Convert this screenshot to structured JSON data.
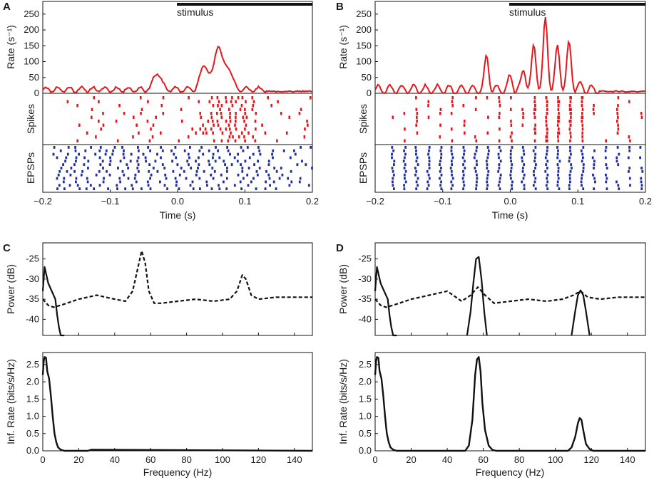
{
  "figure": {
    "colors": {
      "rate": "#e8161b",
      "spikes": "#e8161b",
      "epsps": "#1f2f9e",
      "ink": "#111111"
    }
  },
  "chart_data": [
    {
      "panel": "A",
      "type": "raster",
      "stimulus_label": "stimulus",
      "stimulus_window_s": [
        0.0,
        0.2
      ],
      "rate": {
        "ylabel": "Rate (s⁻¹)",
        "ylim": [
          0,
          290
        ],
        "yticks": [
          "0",
          "50",
          "100",
          "150",
          "200",
          "250"
        ],
        "series": {
          "name": "rate",
          "peaks": [
            [
              -0.03,
              65
            ],
            [
              0.06,
              150
            ],
            [
              0.04,
              95
            ],
            [
              0.075,
              85
            ]
          ],
          "baseline": 12
        }
      },
      "spikes_label": "Spikes",
      "epsps_label": "EPSPs",
      "xlabel": "Time (s)",
      "xlim": [
        -0.2,
        0.2
      ],
      "xticks": [
        "−0.2",
        "−0.1",
        "0.0",
        "0.1",
        "0.2"
      ]
    },
    {
      "panel": "B",
      "type": "raster",
      "stimulus_label": "stimulus",
      "stimulus_window_s": [
        0.0,
        0.2
      ],
      "rate": {
        "ylabel": "Rate (s⁻¹)",
        "ylim": [
          0,
          290
        ],
        "yticks": [
          "0",
          "50",
          "100",
          "150",
          "200",
          "250"
        ],
        "series": {
          "name": "rate",
          "peaks": [
            [
              -0.035,
              115
            ],
            [
              0.0,
              50
            ],
            [
              0.02,
              75
            ],
            [
              0.035,
              145
            ],
            [
              0.052,
              230
            ],
            [
              0.07,
              145
            ],
            [
              0.087,
              155
            ],
            [
              0.105,
              25
            ]
          ],
          "baseline": 12
        }
      },
      "spikes_label": "Spikes",
      "epsps_label": "EPSPs",
      "xlabel": "Time (s)",
      "xlim": [
        -0.2,
        0.2
      ],
      "xticks": [
        "−0.2",
        "−0.1",
        "0.0",
        "0.1",
        "0.2"
      ]
    },
    {
      "panel": "C",
      "type": "line",
      "power": {
        "ylabel": "Power (dB)",
        "ylim": [
          -44,
          -21
        ],
        "yticks": [
          "-25",
          "-30",
          "-35",
          "-40"
        ],
        "series": [
          {
            "name": "solid",
            "style": "solid",
            "x": [
              0,
              1,
              3,
              5,
              7,
              8,
              9,
              10,
              12
            ],
            "y": [
              -33,
              -27,
              -31,
              -33,
              -35,
              -39,
              -42,
              -44,
              -44
            ]
          },
          {
            "name": "dashed",
            "style": "dashed",
            "x": [
              0,
              3,
              6,
              10,
              20,
              30,
              40,
              46,
              50,
              53,
              55,
              57,
              59,
              62,
              66,
              75,
              85,
              95,
              104,
              108,
              111,
              113,
              116,
              120,
              130,
              140,
              150
            ],
            "y": [
              -35,
              -36.5,
              -37,
              -36.5,
              -35,
              -34,
              -35,
              -35.5,
              -33,
              -27,
              -23,
              -26,
              -33,
              -36,
              -36,
              -35.5,
              -35,
              -35.5,
              -35,
              -33,
              -29,
              -30,
              -34,
              -35,
              -34.5,
              -34.5,
              -34.5
            ]
          }
        ]
      },
      "info": {
        "ylabel": "Inf. Rate (bits/s/Hz)",
        "ylim": [
          0,
          2.85
        ],
        "yticks": [
          "0.0",
          "0.5",
          "1.0",
          "1.5",
          "2.0",
          "2.5"
        ],
        "series": [
          {
            "name": "info",
            "style": "solid",
            "x": [
              0,
              0.5,
              1,
              1.8,
              2.5,
              3.5,
              4.5,
              5.5,
              6.5,
              7.5,
              8.5,
              10,
              12,
              25,
              27,
              150
            ],
            "y": [
              2.2,
              2.6,
              2.72,
              2.7,
              2.3,
              2.1,
              1.6,
              1.0,
              0.5,
              0.25,
              0.1,
              0.03,
              0,
              0,
              0.03,
              0
            ]
          }
        ]
      },
      "xlabel": "Frequency (Hz)",
      "xlim": [
        0,
        150
      ],
      "xticks": [
        "0",
        "20",
        "40",
        "60",
        "80",
        "100",
        "120",
        "140"
      ]
    },
    {
      "panel": "D",
      "type": "line",
      "power": {
        "ylabel": "Power (dB)",
        "ylim": [
          -44,
          -21
        ],
        "yticks": [
          "-25",
          "-30",
          "-35",
          "-40"
        ],
        "series": [
          {
            "name": "solid-low",
            "style": "solid",
            "x": [
              0,
              1,
              3,
              5,
              7,
              8,
              9,
              10,
              12
            ],
            "y": [
              -33,
              -27,
              -31,
              -33,
              -35,
              -39,
              -42,
              -44,
              -44
            ]
          },
          {
            "name": "solid-57",
            "style": "solid",
            "x": [
              51,
              53,
              54.5,
              56,
              57.5,
              59,
              60.5,
              62
            ],
            "y": [
              -44,
              -38,
              -31,
              -25,
              -24.5,
              -30,
              -38,
              -44
            ]
          },
          {
            "name": "solid-114",
            "style": "solid",
            "x": [
              109,
              111,
              112.5,
              114,
              115.5,
              117,
              119
            ],
            "y": [
              -44,
              -38,
              -34,
              -32.8,
              -34,
              -38,
              -44
            ]
          },
          {
            "name": "dashed",
            "style": "dashed",
            "x": [
              0,
              3,
              6,
              10,
              20,
              30,
              40,
              48,
              53,
              57,
              61,
              66,
              75,
              85,
              95,
              104,
              110,
              114,
              118,
              125,
              135,
              150
            ],
            "y": [
              -35,
              -36.5,
              -37,
              -36.5,
              -35,
              -34,
              -33,
              -35.5,
              -34,
              -32,
              -34,
              -36,
              -35.5,
              -35,
              -35.5,
              -35,
              -34,
              -33,
              -34.5,
              -35,
              -34.5,
              -34.5
            ]
          }
        ]
      },
      "info": {
        "ylabel": "Inf. Rate (bits/s/Hz)",
        "ylim": [
          0,
          2.85
        ],
        "yticks": [
          "0.0",
          "0.5",
          "1.0",
          "1.5",
          "2.0",
          "2.5"
        ],
        "series": [
          {
            "name": "info",
            "style": "solid",
            "x": [
              0,
              0.5,
              1,
              1.8,
              2.5,
              3.5,
              4.5,
              5.5,
              6.5,
              7.5,
              8.5,
              10,
              12,
              50,
              52,
              54,
              55.5,
              56.5,
              57.5,
              58.5,
              59.5,
              61,
              63,
              65,
              67,
              107,
              109,
              111,
              112.5,
              113.5,
              114.5,
              115.5,
              117,
              119,
              121,
              150
            ],
            "y": [
              2.2,
              2.6,
              2.72,
              2.7,
              2.3,
              2.1,
              1.6,
              1.0,
              0.5,
              0.25,
              0.1,
              0.03,
              0,
              0,
              0.15,
              0.9,
              2.2,
              2.65,
              2.72,
              2.3,
              1.4,
              0.6,
              0.15,
              0.03,
              0,
              0,
              0.1,
              0.4,
              0.8,
              0.95,
              0.9,
              0.6,
              0.2,
              0.05,
              0,
              0
            ]
          }
        ]
      },
      "xlabel": "Frequency (Hz)",
      "xlim": [
        0,
        150
      ],
      "xticks": [
        "0",
        "20",
        "40",
        "60",
        "80",
        "100",
        "120",
        "140"
      ]
    }
  ]
}
